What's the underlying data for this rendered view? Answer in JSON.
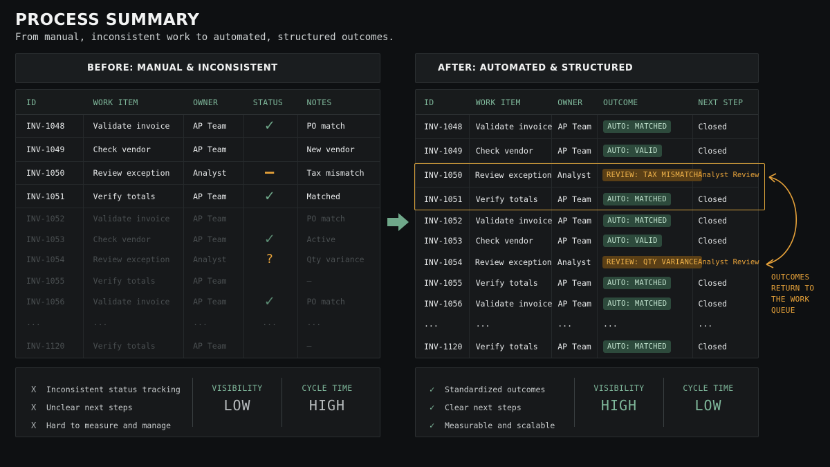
{
  "title": "PROCESS SUMMARY",
  "subtitle": "From manual, inconsistent work to automated, structured outcomes.",
  "before": {
    "header": "BEFORE: MANUAL & INCONSISTENT",
    "columns": [
      "ID",
      "WORK ITEM",
      "OWNER",
      "STATUS",
      "NOTES"
    ],
    "rows": [
      {
        "id": "INV-1048",
        "item": "Validate invoice",
        "owner": "AP Team",
        "status": "check",
        "notes": "PO match",
        "dim": false
      },
      {
        "id": "INV-1049",
        "item": "Check vendor",
        "owner": "AP Team",
        "status": "",
        "notes": "New vendor",
        "dim": false
      },
      {
        "id": "INV-1050",
        "item": "Review exception",
        "owner": "Analyst",
        "status": "dash",
        "notes": "Tax mismatch",
        "dim": false
      },
      {
        "id": "INV-1051",
        "item": "Verify totals",
        "owner": "AP Team",
        "status": "check",
        "notes": "Matched",
        "dim": false
      },
      {
        "id": "INV-1052",
        "item": "Validate invoice",
        "owner": "AP Team",
        "status": "",
        "notes": "PO match",
        "dim": true
      },
      {
        "id": "INV-1053",
        "item": "Check vendor",
        "owner": "AP Team",
        "status": "check",
        "notes": "Active",
        "dim": true
      },
      {
        "id": "INV-1054",
        "item": "Review exception",
        "owner": "Analyst",
        "status": "question",
        "notes": "Qty variance",
        "dim": true
      },
      {
        "id": "INV-1055",
        "item": "Verify totals",
        "owner": "AP Team",
        "status": "",
        "notes": "–",
        "dim": true
      },
      {
        "id": "INV-1056",
        "item": "Validate invoice",
        "owner": "AP Team",
        "status": "check",
        "notes": "PO match",
        "dim": true
      },
      {
        "id": "...",
        "item": "...",
        "owner": "...",
        "status": "dots",
        "notes": "...",
        "dim": true
      },
      {
        "id": "INV-1120",
        "item": "Verify totals",
        "owner": "AP Team",
        "status": "",
        "notes": "–",
        "dim": true
      }
    ],
    "summary": {
      "items": [
        "Inconsistent status tracking",
        "Unclear next steps",
        "Hard to measure and manage"
      ],
      "item_symbol": "X",
      "visibility_label": "VISIBILITY",
      "visibility_value": "LOW",
      "cycle_label": "CYCLE TIME",
      "cycle_value": "HIGH"
    }
  },
  "after": {
    "header": "AFTER: AUTOMATED & STRUCTURED",
    "columns": [
      "ID",
      "WORK ITEM",
      "OWNER",
      "OUTCOME",
      "NEXT STEP"
    ],
    "rows": [
      {
        "id": "INV-1048",
        "item": "Validate invoice",
        "owner": "AP Team",
        "outcome": "AUTO: MATCHED",
        "kind": "ok",
        "next": "Closed"
      },
      {
        "id": "INV-1049",
        "item": "Check vendor",
        "owner": "AP Team",
        "outcome": "AUTO: VALID",
        "kind": "ok",
        "next": "Closed"
      },
      {
        "id": "INV-1050",
        "item": "Review exception",
        "owner": "Analyst",
        "outcome": "REVIEW: TAX MISMATCH",
        "kind": "review",
        "next": "Analyst Review"
      },
      {
        "id": "INV-1051",
        "item": "Verify totals",
        "owner": "AP Team",
        "outcome": "AUTO: MATCHED",
        "kind": "ok",
        "next": "Closed"
      },
      {
        "id": "INV-1052",
        "item": "Validate invoice",
        "owner": "AP Team",
        "outcome": "AUTO: MATCHED",
        "kind": "ok",
        "next": "Closed"
      },
      {
        "id": "INV-1053",
        "item": "Check vendor",
        "owner": "AP Team",
        "outcome": "AUTO: VALID",
        "kind": "ok",
        "next": "Closed"
      },
      {
        "id": "INV-1054",
        "item": "Review exception",
        "owner": "Analyst",
        "outcome": "REVIEW: QTY VARIANCE",
        "kind": "review",
        "next": "Analyst Review"
      },
      {
        "id": "INV-1055",
        "item": "Verify totals",
        "owner": "AP Team",
        "outcome": "AUTO: MATCHED",
        "kind": "ok",
        "next": "Closed"
      },
      {
        "id": "INV-1056",
        "item": "Validate invoice",
        "owner": "AP Team",
        "outcome": "AUTO: MATCHED",
        "kind": "ok",
        "next": "Closed"
      },
      {
        "id": "...",
        "item": "...",
        "owner": "...",
        "outcome": "...",
        "kind": "text",
        "next": "..."
      },
      {
        "id": "INV-1120",
        "item": "Verify totals",
        "owner": "AP Team",
        "outcome": "AUTO: MATCHED",
        "kind": "ok",
        "next": "Closed"
      }
    ],
    "side_note": [
      "OUTCOMES",
      "RETURN TO",
      "THE WORK",
      "QUEUE"
    ],
    "summary": {
      "items": [
        "Standardized outcomes",
        "Clear next steps",
        "Measurable and scalable"
      ],
      "item_symbol": "✓",
      "visibility_label": "VISIBILITY",
      "visibility_value": "HIGH",
      "cycle_label": "CYCLE TIME",
      "cycle_value": "LOW"
    }
  },
  "colors": {
    "accent_green": "#7fb89b",
    "accent_orange": "#e8a33a",
    "background": "#0e1012"
  }
}
